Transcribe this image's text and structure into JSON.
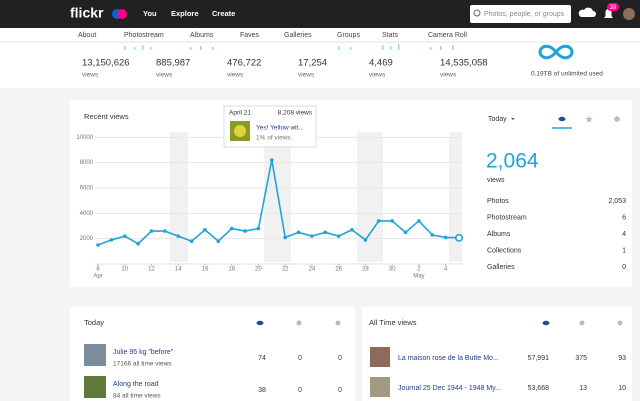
{
  "nav": {
    "logo": "flickr",
    "links": [
      "You",
      "Explore",
      "Create"
    ],
    "search_placeholder": "Photos, people, or groups",
    "notification_count": "39"
  },
  "subnav": [
    "About",
    "Photostream",
    "Albums",
    "Faves",
    "Galleries",
    "Groups",
    "Stats",
    "Camera Roll"
  ],
  "totals": [
    {
      "value": "13,150,626",
      "unit": "views"
    },
    {
      "value": "885,987",
      "unit": "views"
    },
    {
      "value": "476,722",
      "unit": "views"
    },
    {
      "value": "17,254",
      "unit": "views"
    },
    {
      "value": "4,469",
      "unit": "views"
    },
    {
      "value": "14,535,058",
      "unit": "views"
    }
  ],
  "storage": "0.19TB of unlimited used",
  "chart_data": {
    "type": "line",
    "title": "Recent views",
    "categories": [
      "8",
      null,
      "10",
      null,
      "12",
      null,
      "14",
      null,
      "16",
      null,
      "18",
      null,
      "20",
      null,
      "22",
      null,
      "24",
      null,
      "26",
      null,
      "28",
      null,
      "30",
      null,
      "2",
      null,
      "4",
      null
    ],
    "months": [
      "Apr",
      null,
      null,
      null,
      null,
      null,
      null,
      null,
      null,
      null,
      null,
      null,
      null,
      null,
      null,
      null,
      null,
      null,
      null,
      null,
      null,
      null,
      null,
      null,
      "May",
      null,
      null,
      null
    ],
    "values": [
      1500,
      1900,
      2200,
      1600,
      2600,
      2600,
      2200,
      1800,
      2700,
      1800,
      2800,
      2600,
      2800,
      8208,
      2100,
      2500,
      2200,
      2500,
      2200,
      2700,
      1900,
      3400,
      3400,
      2500,
      3400,
      2300,
      2100,
      2064
    ],
    "color": "#1fa4d9",
    "ylim": [
      0,
      10500
    ],
    "yticks": [
      2000,
      4000,
      6000,
      8000,
      10000
    ],
    "grid": true,
    "tooltip": {
      "date": "April 21",
      "value_label": "8,208 views",
      "photo": "Yes! Yellow wit...",
      "share": "1% of views"
    }
  },
  "today_panel": {
    "period": "Today",
    "views": "2,064",
    "views_unit": "views",
    "rows": [
      [
        "Photos",
        "2,053"
      ],
      [
        "Photostream",
        "6"
      ],
      [
        "Albums",
        "4"
      ],
      [
        "Collections",
        "1"
      ],
      [
        "Galleries",
        "0"
      ]
    ]
  },
  "today_table": {
    "title": "Today",
    "rows": [
      {
        "title": "Julie 95 kg \"before\"",
        "subtitle": "17166 all time views",
        "views": "74",
        "faves": "0",
        "comments": "0"
      },
      {
        "title": "Along the road",
        "subtitle": "84 all time views",
        "views": "38",
        "faves": "0",
        "comments": "0"
      }
    ]
  },
  "all_time_table": {
    "title": "All Time views",
    "rows": [
      {
        "title": "La maison rose de la Butte Mo...",
        "views": "57,991",
        "faves": "375",
        "comments": "93"
      },
      {
        "title": "Journal 25 Dec 1944 - 1948 My...",
        "views": "53,668",
        "faves": "13",
        "comments": "10"
      }
    ]
  }
}
